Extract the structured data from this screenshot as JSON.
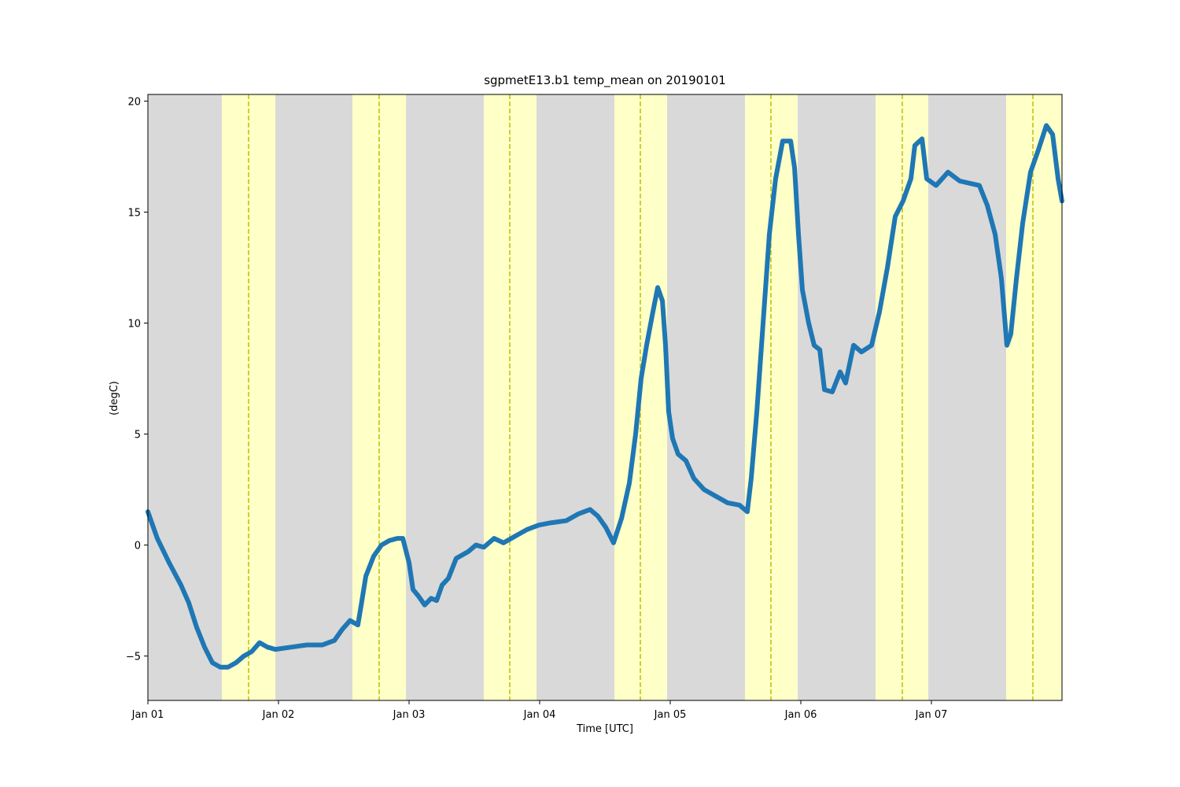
{
  "chart_data": {
    "type": "line",
    "title": "sgpmetE13.b1 temp_mean on 20190101",
    "xlabel": "Time [UTC]",
    "ylabel": "(degC)",
    "x": [
      0,
      0.072,
      0.163,
      0.253,
      0.313,
      0.373,
      0.434,
      0.494,
      0.554,
      0.614,
      0.675,
      0.735,
      0.795,
      0.855,
      0.916,
      0.976,
      1.096,
      1.217,
      1.337,
      1.428,
      1.488,
      1.548,
      1.608,
      1.639,
      1.669,
      1.729,
      1.789,
      1.849,
      1.91,
      1.952,
      2.0,
      2.03,
      2.072,
      2.12,
      2.169,
      2.211,
      2.253,
      2.301,
      2.361,
      2.452,
      2.512,
      2.572,
      2.651,
      2.723,
      2.813,
      2.904,
      2.994,
      3.084,
      3.205,
      3.295,
      3.386,
      3.446,
      3.506,
      3.566,
      3.627,
      3.687,
      3.735,
      3.777,
      3.819,
      3.867,
      3.904,
      3.94,
      3.964,
      3.988,
      4.018,
      4.06,
      4.12,
      4.181,
      4.259,
      4.349,
      4.44,
      4.53,
      4.59,
      4.62,
      4.663,
      4.711,
      4.759,
      4.807,
      4.861,
      4.922,
      4.952,
      4.982,
      5.012,
      5.06,
      5.102,
      5.145,
      5.181,
      5.241,
      5.301,
      5.343,
      5.404,
      5.464,
      5.542,
      5.602,
      5.663,
      5.723,
      5.783,
      5.843,
      5.873,
      5.928,
      5.964,
      6.036,
      6.127,
      6.217,
      6.367,
      6.428,
      6.488,
      6.536,
      6.578,
      6.608,
      6.651,
      6.699,
      6.759,
      6.819,
      6.88,
      6.928,
      6.97,
      7.0
    ],
    "values": [
      1.5,
      0.3,
      -0.8,
      -1.8,
      -2.6,
      -3.7,
      -4.6,
      -5.3,
      -5.5,
      -5.5,
      -5.3,
      -5.0,
      -4.8,
      -4.4,
      -4.6,
      -4.7,
      -4.6,
      -4.5,
      -4.5,
      -4.3,
      -3.8,
      -3.4,
      -3.6,
      -2.5,
      -1.4,
      -0.5,
      0.0,
      0.2,
      0.3,
      0.3,
      -0.8,
      -2.0,
      -2.3,
      -2.7,
      -2.4,
      -2.5,
      -1.8,
      -1.5,
      -0.6,
      -0.3,
      0.0,
      -0.1,
      0.3,
      0.1,
      0.4,
      0.7,
      0.9,
      1.0,
      1.1,
      1.4,
      1.6,
      1.3,
      0.8,
      0.1,
      1.2,
      2.8,
      5.0,
      7.5,
      9.0,
      10.5,
      11.6,
      11.0,
      9.0,
      6.0,
      4.8,
      4.1,
      3.8,
      3.0,
      2.5,
      2.2,
      1.9,
      1.8,
      1.5,
      3.0,
      6.0,
      10.0,
      14.0,
      16.5,
      18.2,
      18.2,
      17.0,
      14.0,
      11.5,
      10.0,
      9.0,
      8.8,
      7.0,
      6.9,
      7.8,
      7.3,
      9.0,
      8.7,
      9.0,
      10.5,
      12.5,
      14.8,
      15.5,
      16.5,
      18.0,
      18.3,
      16.5,
      16.2,
      16.8,
      16.4,
      16.2,
      15.3,
      14.0,
      12.0,
      9.0,
      9.5,
      12.0,
      14.5,
      16.8,
      17.8,
      18.9,
      18.5,
      16.5,
      15.5
    ],
    "color": "#1f77b4",
    "xlim": [
      0,
      7
    ],
    "xticks": [
      {
        "value": 0,
        "label": "Jan 01"
      },
      {
        "value": 1,
        "label": "Jan 02"
      },
      {
        "value": 2,
        "label": "Jan 03"
      },
      {
        "value": 3,
        "label": "Jan 04"
      },
      {
        "value": 4,
        "label": "Jan 05"
      },
      {
        "value": 5,
        "label": "Jan 06"
      },
      {
        "value": 6,
        "label": "Jan 07"
      }
    ],
    "ylim": [
      -7,
      20.3
    ],
    "yticks": [
      {
        "value": -5,
        "label": "−5"
      },
      0,
      5,
      10,
      15,
      20
    ],
    "night_color": "#d9d9d9",
    "day_color": "#ffffc8",
    "noon_color": "#bfbf00",
    "day_bands": [
      [
        0.566,
        0.976
      ],
      [
        1.566,
        1.976
      ],
      [
        2.572,
        2.976
      ],
      [
        3.572,
        3.976
      ],
      [
        4.572,
        4.976
      ],
      [
        5.572,
        5.976
      ],
      [
        6.572,
        7.0
      ]
    ],
    "noon": [
      0.771,
      1.771,
      2.771,
      3.771,
      4.771,
      5.777,
      6.777
    ]
  }
}
